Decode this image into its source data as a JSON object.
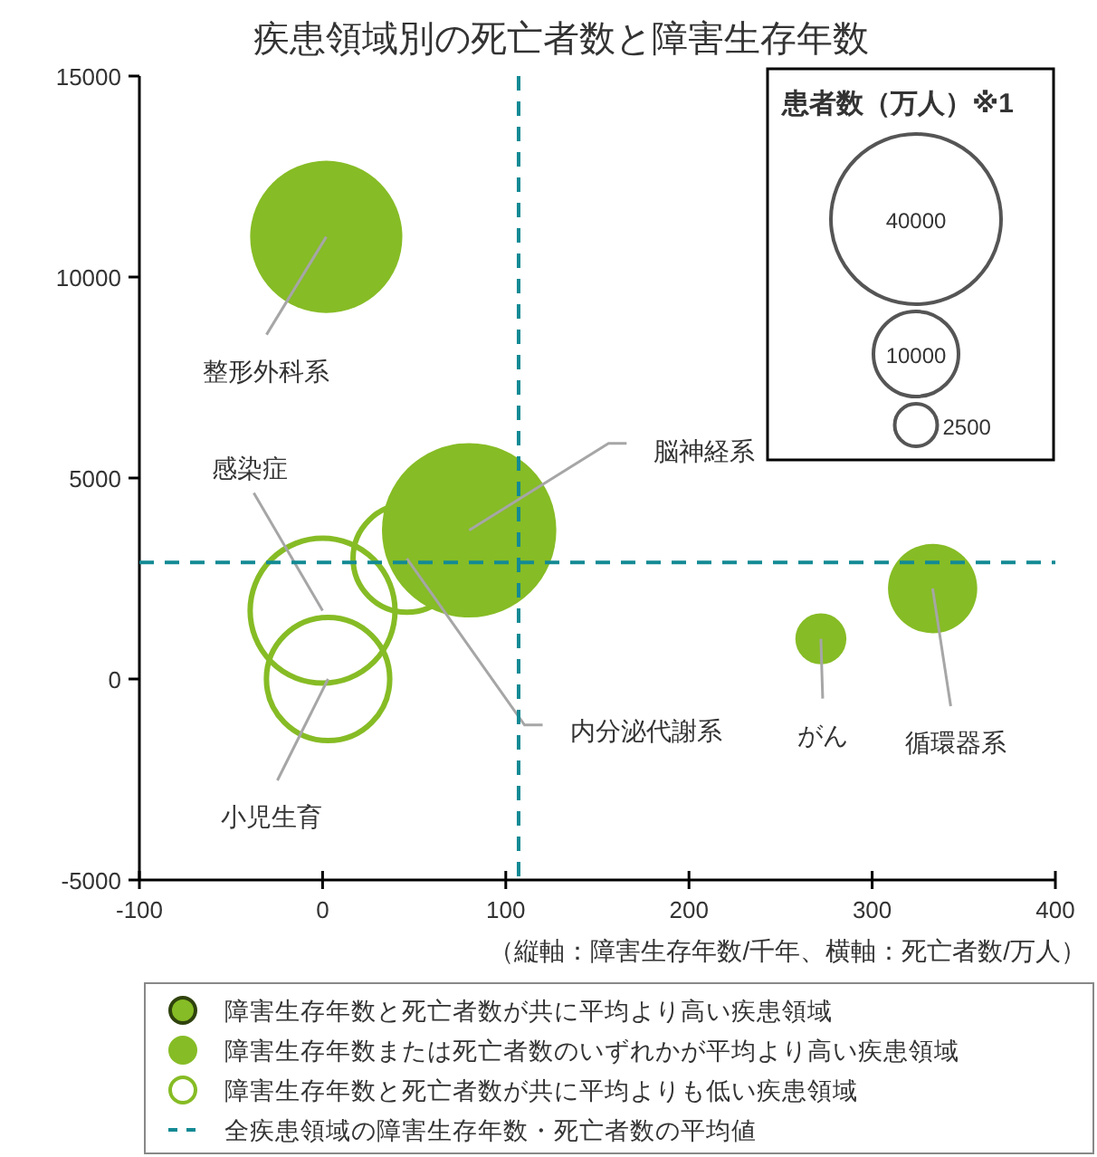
{
  "chart_data": {
    "type": "bubble",
    "title": "疾患領域別の死亡者数と障害生存年数",
    "annotations": [
      "（縦軸：障害生存年数/千年、横軸：死亡者数/万人）"
    ],
    "xlim": [
      -100,
      400
    ],
    "xticks": [
      -100,
      0,
      100,
      200,
      300,
      400
    ],
    "ylim": [
      -5000,
      15000
    ],
    "yticks": [
      -5000,
      0,
      5000,
      10000,
      15000
    ],
    "legend": "bottom",
    "legend_title": "患者数（万人）※1",
    "size_legend": [
      40000,
      10000,
      2500
    ],
    "series": [
      {
        "name": "障害生存年数と死亡者数が共に平均より高い疾患領域",
        "color": "#86bc25"
      },
      {
        "name": "障害生存年数または死亡者数のいずれかが平均より高い疾患領域",
        "color": "#86bc25",
        "x": [
          2,
          80,
          272,
          333
        ],
        "values": [
          11000,
          3700,
          1000,
          2250
        ],
        "sizes": [
          32000,
          42000,
          3600,
          11000
        ],
        "value_labels": [
          "整形外科系",
          "脳神経系",
          "がん",
          "循環器系"
        ]
      },
      {
        "name": "障害生存年数と死亡者数が共に平均よりも低い疾患領域",
        "color": "#86bc25",
        "x": [
          46,
          0,
          3
        ],
        "values": [
          3000,
          1700,
          0
        ],
        "sizes": [
          16000,
          29000,
          21000
        ],
        "value_labels": [
          "内分泌代謝系",
          "感染症",
          "小児生育"
        ]
      }
    ],
    "ref_lines": [
      {
        "axis": "x",
        "value": 107,
        "label": "全疾患領域の障害生存年数・死亡者数の平均値",
        "color": "#138a94",
        "line_style": "dashed"
      },
      {
        "axis": "y",
        "value": 2900,
        "color": "#138a94",
        "line_style": "dashed"
      }
    ]
  }
}
